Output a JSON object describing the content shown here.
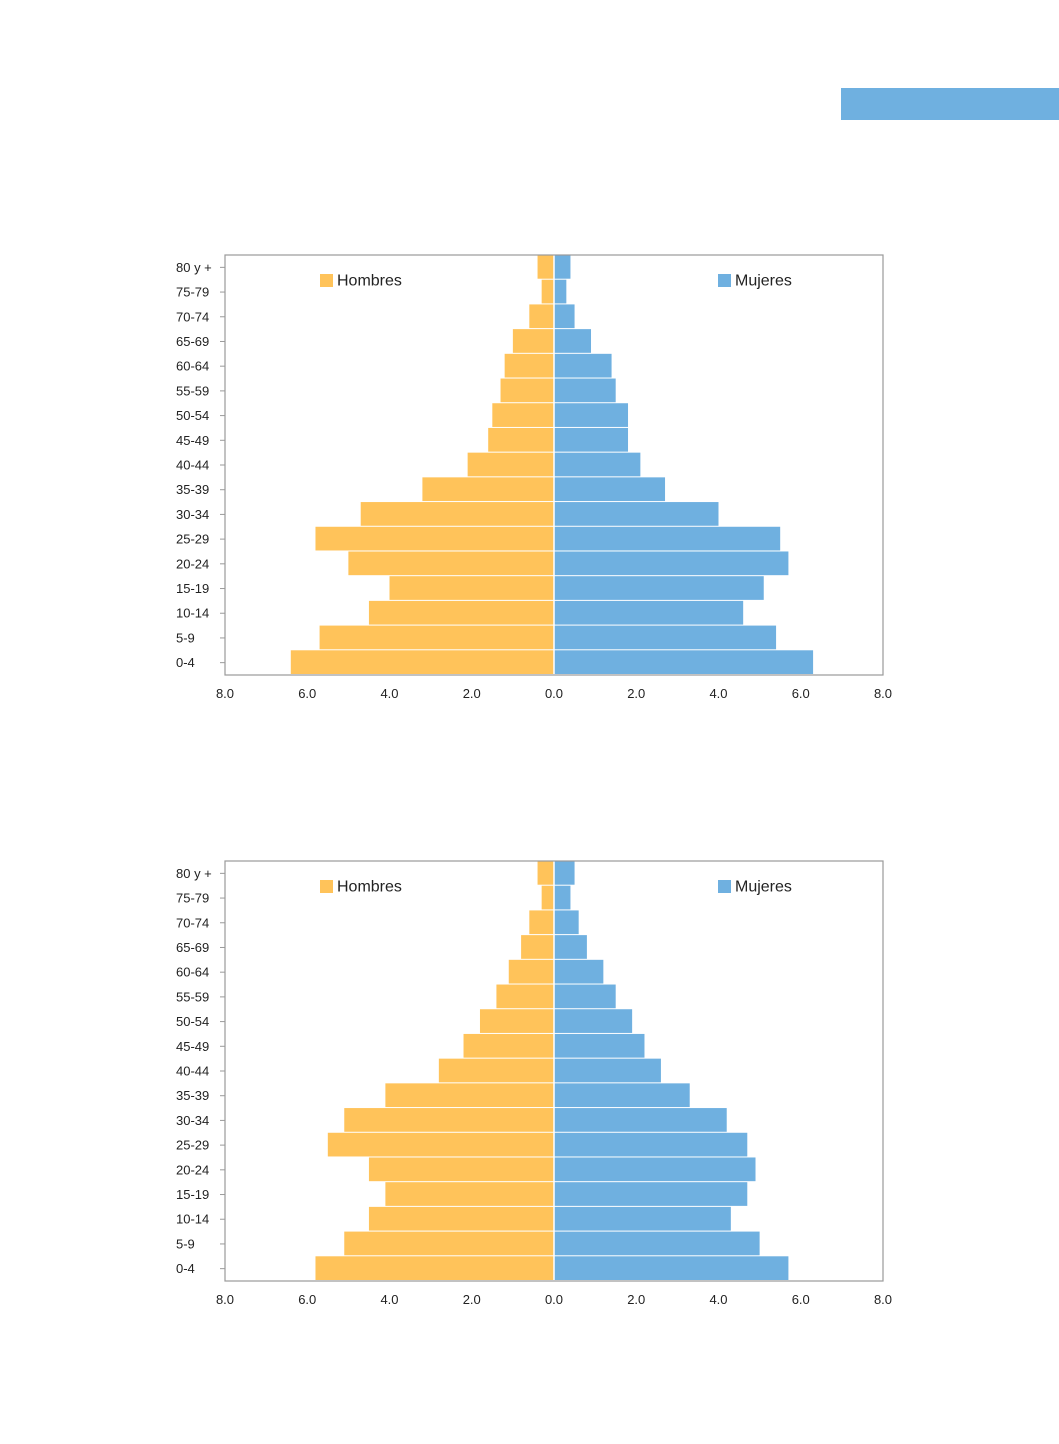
{
  "colors": {
    "accent_bar": "#6fb0e0",
    "male": "#ffc35a",
    "female": "#6fb0e0",
    "frame": "#9a9a9a"
  },
  "chart_data": [
    {
      "type": "bar",
      "orientation": "horizontal-population-pyramid",
      "categories": [
        "80 y +",
        "75-79",
        "70-74",
        "65-69",
        "60-64",
        "55-59",
        "50-54",
        "45-49",
        "40-44",
        "35-39",
        "30-34",
        "25-29",
        "20-24",
        "15-19",
        "10-14",
        "5-9",
        "0-4"
      ],
      "series": [
        {
          "name": "Hombres",
          "side": "left",
          "values": [
            0.4,
            0.3,
            0.6,
            1.0,
            1.2,
            1.3,
            1.5,
            1.6,
            2.1,
            3.2,
            4.7,
            5.8,
            5.0,
            4.0,
            4.5,
            5.7,
            6.4
          ]
        },
        {
          "name": "Mujeres",
          "side": "right",
          "values": [
            0.4,
            0.3,
            0.5,
            0.9,
            1.4,
            1.5,
            1.8,
            1.8,
            2.1,
            2.7,
            4.0,
            5.5,
            5.7,
            5.1,
            4.6,
            5.4,
            6.3
          ]
        }
      ],
      "xticks": [
        "8.0",
        "6.0",
        "4.0",
        "2.0",
        "0.0",
        "2.0",
        "4.0",
        "6.0",
        "8.0"
      ],
      "xlim": [
        -8,
        8
      ],
      "legend": "top-left and top-right inside plot",
      "grid": false
    },
    {
      "type": "bar",
      "orientation": "horizontal-population-pyramid",
      "categories": [
        "80 y +",
        "75-79",
        "70-74",
        "65-69",
        "60-64",
        "55-59",
        "50-54",
        "45-49",
        "40-44",
        "35-39",
        "30-34",
        "25-29",
        "20-24",
        "15-19",
        "10-14",
        "5-9",
        "0-4"
      ],
      "series": [
        {
          "name": "Hombres",
          "side": "left",
          "values": [
            0.4,
            0.3,
            0.6,
            0.8,
            1.1,
            1.4,
            1.8,
            2.2,
            2.8,
            4.1,
            5.1,
            5.5,
            4.5,
            4.1,
            4.5,
            5.1,
            5.8
          ]
        },
        {
          "name": "Mujeres",
          "side": "right",
          "values": [
            0.5,
            0.4,
            0.6,
            0.8,
            1.2,
            1.5,
            1.9,
            2.2,
            2.6,
            3.3,
            4.2,
            4.7,
            4.9,
            4.7,
            4.3,
            5.0,
            5.7
          ]
        }
      ],
      "xticks": [
        "8.0",
        "6.0",
        "4.0",
        "2.0",
        "0.0",
        "2.0",
        "4.0",
        "6.0",
        "8.0"
      ],
      "xlim": [
        -8,
        8
      ],
      "legend": "top-left and top-right inside plot",
      "grid": false
    }
  ]
}
